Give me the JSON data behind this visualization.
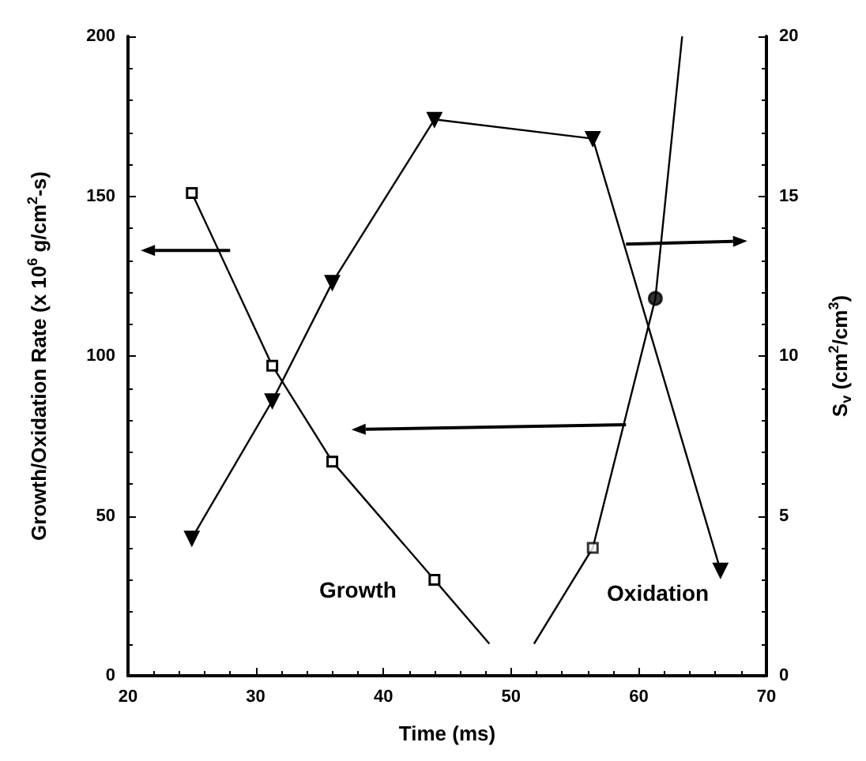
{
  "chart_data": {
    "type": "line",
    "xlabel": "Time (ms)",
    "ylabel": "Growth/Oxidation Rate (x 10$^{6}$ g/cm$^{2}$-s)",
    "y2label": "S$_{v}$ (cm$^{2}$/cm$^{3}$)",
    "xlim": [
      20,
      70
    ],
    "xticks": [
      20,
      30,
      40,
      50,
      60,
      70
    ],
    "ylim": [
      0,
      200
    ],
    "yticks": [
      0,
      50,
      100,
      150,
      200
    ],
    "y2lim": [
      0,
      20
    ],
    "y2ticks": [
      0,
      5,
      10,
      15,
      20
    ],
    "grid": false,
    "line_style": "solid",
    "series": [
      {
        "color": "#000000",
        "marker": "square",
        "x": [
          25,
          31.3,
          36,
          44
        ],
        "values": [
          151,
          97,
          67,
          30
        ]
      },
      {
        "color": "#000000",
        "marker": "none",
        "x": [
          44,
          48.3
        ],
        "values": [
          30,
          10
        ]
      },
      {
        "color": "#000000",
        "marker": "none",
        "x": [
          51.8,
          56.4,
          61.3,
          63.4
        ],
        "values": [
          10,
          40,
          118,
          200
        ]
      },
      {
        "type": "scatter",
        "color": "#000000",
        "marker": "square",
        "x": [
          56.4
        ],
        "values": [
          40
        ]
      },
      {
        "type": "scatter",
        "color": "#000000",
        "marker": "circle",
        "x": [
          61.3
        ],
        "values": [
          118
        ]
      },
      {
        "color": "#000000",
        "marker": "triangle",
        "axis": "y2",
        "x": [
          25,
          31.3,
          36,
          44,
          56.4,
          66.4
        ],
        "values": [
          4.3,
          8.6,
          12.3,
          17.4,
          16.8,
          3.3
        ]
      }
    ],
    "annotations": [
      "Growth",
      "Oxidation"
    ]
  }
}
